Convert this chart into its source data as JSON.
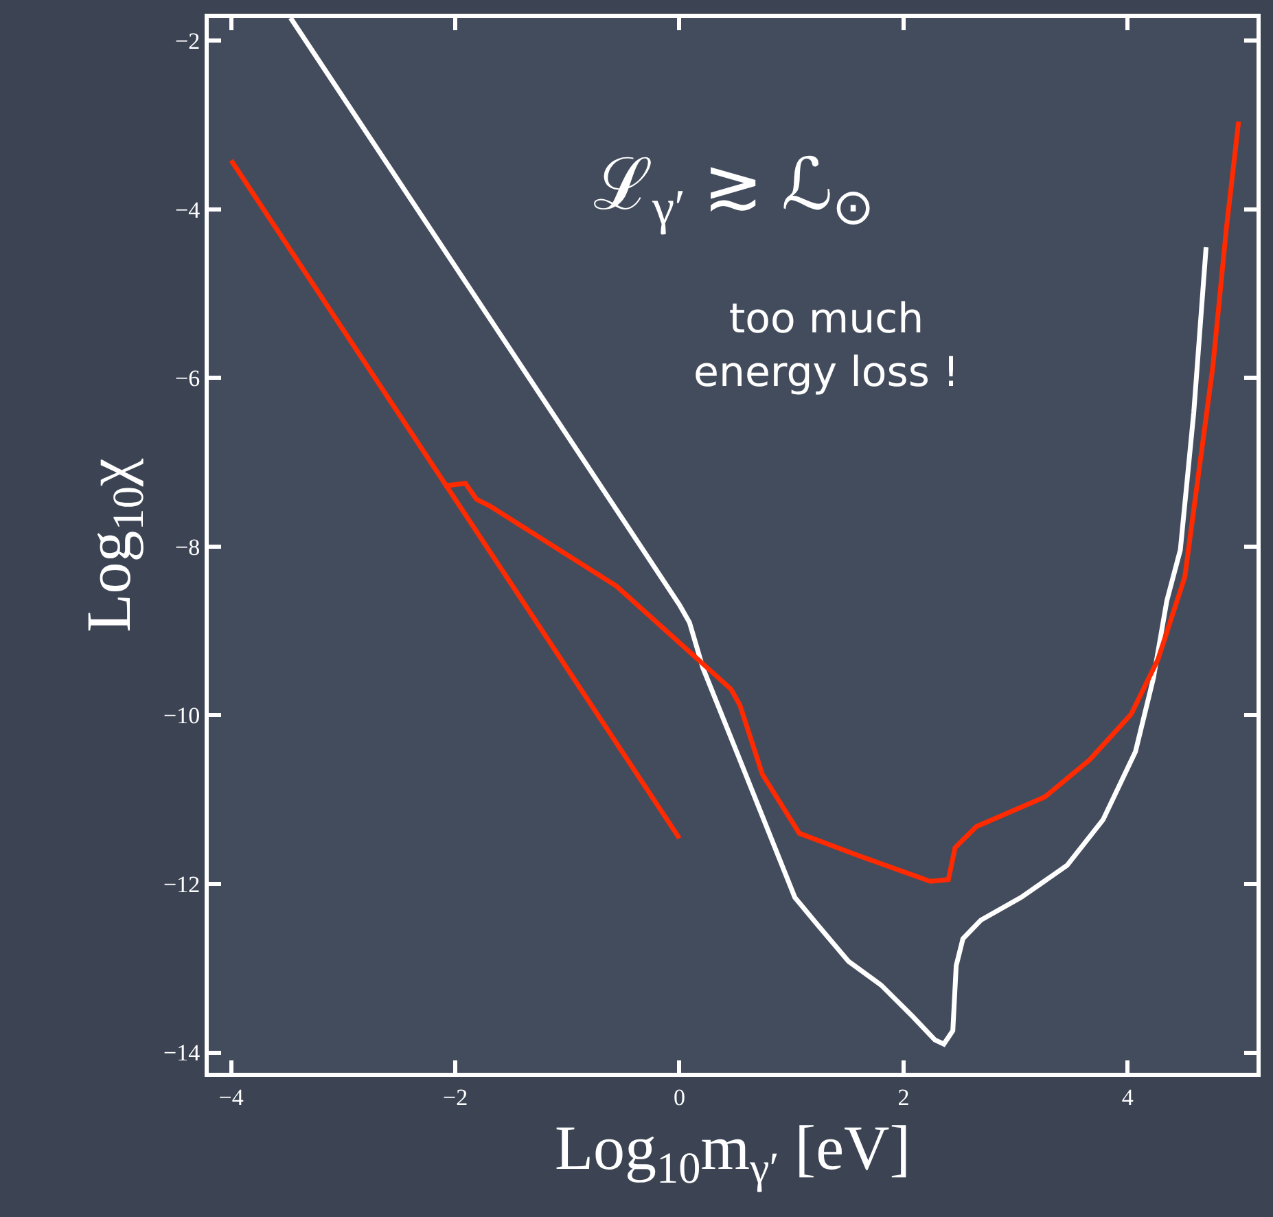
{
  "chart_data": {
    "type": "line",
    "xlabel": "Log$_{10}$m$_{γ′}$ [eV]",
    "ylabel": "Log$_{10}$χ",
    "annotations": [
      "ℒ$_{γ′}$ ≳ ℒ$_{⊙}$",
      "too much\nenergy loss !"
    ],
    "xlim": [
      -4.2,
      5.15
    ],
    "ylim": [
      -14.24,
      -1.73
    ],
    "xticks": [
      -4,
      -2,
      0,
      2,
      4
    ],
    "yticks": [
      -14,
      -12,
      -10,
      -8,
      -6,
      -4,
      -2
    ],
    "marker": "none",
    "line_style": "solid",
    "series": [
      {
        "color": "#ffffff",
        "x": [
          -3.47,
          0,
          0.09,
          0.21,
          0.54,
          1.03,
          1.23,
          1.51,
          1.8,
          2.08,
          2.28,
          2.36,
          2.44,
          2.47,
          2.53,
          2.69,
          3.05,
          3.46,
          3.78,
          4.07,
          4.23,
          4.35,
          4.47,
          4.59,
          4.7
        ],
        "values": [
          -1.73,
          -8.69,
          -8.9,
          -9.44,
          -10.53,
          -12.16,
          -12.48,
          -12.92,
          -13.2,
          -13.57,
          -13.85,
          -13.9,
          -13.74,
          -12.97,
          -12.65,
          -12.43,
          -12.16,
          -11.78,
          -11.24,
          -10.43,
          -9.56,
          -8.64,
          -8.04,
          -6.41,
          -4.45
        ]
      },
      {
        "color": "#ff2a00",
        "x": [
          -4.0,
          0
        ],
        "values": [
          -3.42,
          -11.46
        ]
      },
      {
        "color": "#ff2a00",
        "x": [
          -2.1,
          -1.91,
          -1.81,
          -1.69,
          -0.56,
          0.46,
          0.54,
          0.74,
          1.07,
          1.63,
          2.24,
          2.4,
          2.46,
          2.65,
          3.26,
          3.66,
          4.03,
          4.27,
          4.51,
          4.76,
          4.88,
          4.99
        ],
        "values": [
          -7.28,
          -7.25,
          -7.44,
          -7.52,
          -8.47,
          -9.69,
          -9.88,
          -10.7,
          -11.4,
          -11.68,
          -11.97,
          -11.95,
          -11.57,
          -11.32,
          -10.97,
          -10.53,
          -9.99,
          -9.34,
          -8.36,
          -5.87,
          -4.24,
          -2.96
        ]
      }
    ]
  }
}
